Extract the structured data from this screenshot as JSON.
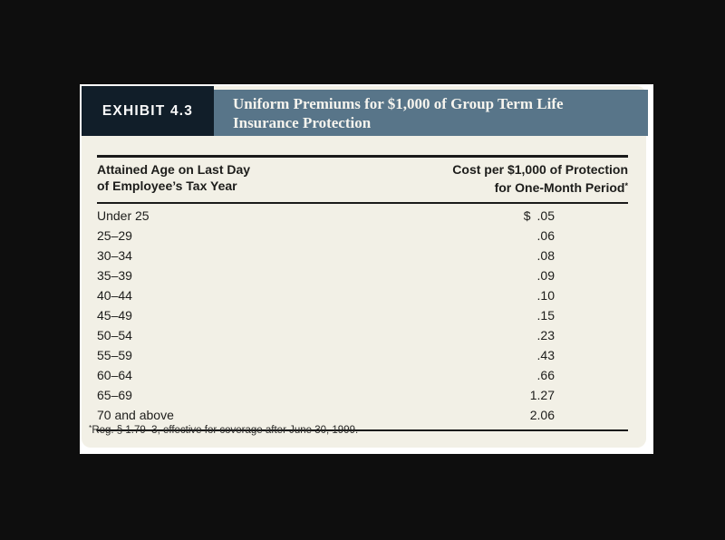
{
  "exhibit": {
    "label": "EXHIBIT 4.3",
    "title": "Uniform Premiums for $1,000 of Group Term Life Insurance Protection"
  },
  "table": {
    "col1_header_line1": "Attained Age on Last Day",
    "col1_header_line2": "of Employee’s Tax Year",
    "col2_header_line1": "Cost per $1,000 of Protection",
    "col2_header_line2": "for One-Month Period",
    "col2_header_footnote_marker": "*",
    "rows": [
      {
        "age": "Under 25",
        "currency": "$",
        "cost": ".05"
      },
      {
        "age": "25–29",
        "currency": "",
        "cost": ".06"
      },
      {
        "age": "30–34",
        "currency": "",
        "cost": ".08"
      },
      {
        "age": "35–39",
        "currency": "",
        "cost": ".09"
      },
      {
        "age": "40–44",
        "currency": "",
        "cost": ".10"
      },
      {
        "age": "45–49",
        "currency": "",
        "cost": ".15"
      },
      {
        "age": "50–54",
        "currency": "",
        "cost": ".23"
      },
      {
        "age": "55–59",
        "currency": "",
        "cost": ".43"
      },
      {
        "age": "60–64",
        "currency": "",
        "cost": ".66"
      },
      {
        "age": "65–69",
        "currency": "",
        "cost": "1.27"
      },
      {
        "age": "70 and above",
        "currency": "",
        "cost": "2.06"
      }
    ]
  },
  "footnote": {
    "marker": "*",
    "text": "Reg. § 1.79–3, effective for coverage after June 30, 1999."
  },
  "colors": {
    "page_background": "#0e0e0e",
    "card_background": "#f2f0e6",
    "card_frame": "#ffffff",
    "exhibit_box": "#111e29",
    "title_bar": "#587589",
    "rule": "#1a1a1a",
    "body_text": "#1d1d1b"
  }
}
